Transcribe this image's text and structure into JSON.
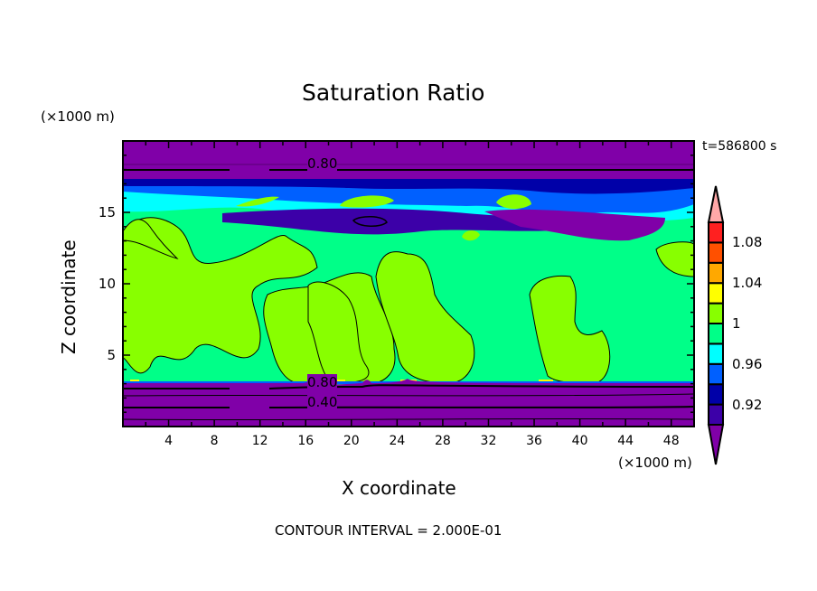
{
  "chart_data": {
    "type": "heatmap",
    "subtype": "filled-contour",
    "title": "Saturation Ratio",
    "xlabel": "X coordinate",
    "ylabel": "Z coordinate",
    "x_unit": "(×1000 m)",
    "y_unit": "(×1000 m)",
    "xlim": [
      0,
      50
    ],
    "ylim": [
      0,
      20
    ],
    "xticks": [
      4,
      8,
      12,
      16,
      20,
      24,
      28,
      32,
      36,
      40,
      44,
      48
    ],
    "yticks": [
      5,
      10,
      15
    ],
    "time_label": "t=586800 s",
    "footer": "CONTOUR INTERVAL = 2.000E-01",
    "contour_labels": [
      "0.80",
      "0.80",
      "0.40"
    ],
    "colorbar": {
      "levels": [
        0.9,
        0.92,
        0.94,
        0.96,
        0.98,
        1.0,
        1.02,
        1.04,
        1.06,
        1.08,
        1.1
      ],
      "tick_labels": [
        "0.92",
        "0.96",
        "1",
        "1.04",
        "1.08"
      ],
      "colors": [
        "#8000a8",
        "#3c00a8",
        "#0000a8",
        "#0060ff",
        "#00ffff",
        "#00ff88",
        "#88ff00",
        "#ffff00",
        "#ffa800",
        "#ff5000",
        "#ff2020",
        "#ffa8a8"
      ]
    }
  }
}
